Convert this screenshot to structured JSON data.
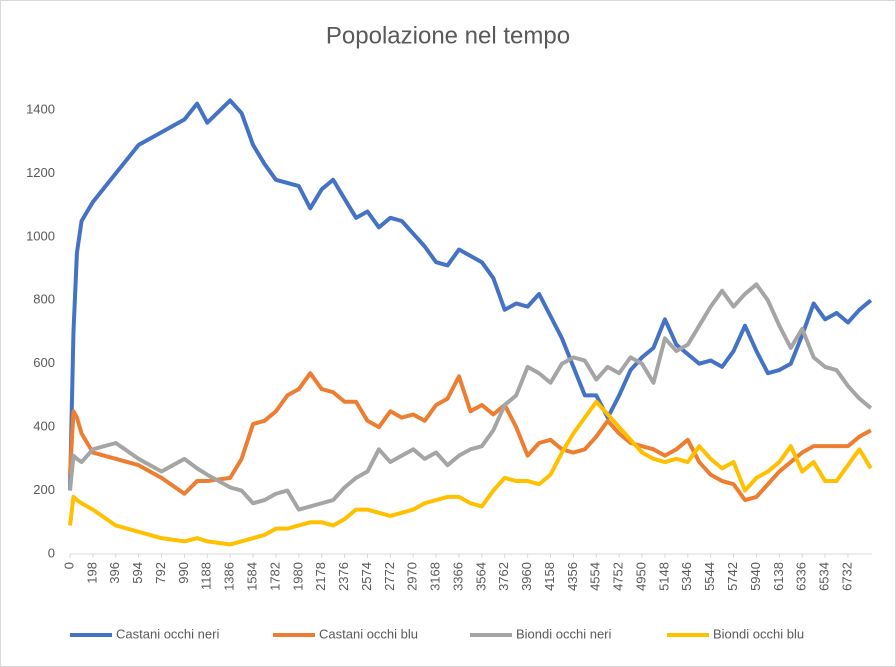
{
  "chart_data": {
    "type": "line",
    "title": "Popolazione nel tempo",
    "x": [
      0,
      30,
      60,
      100,
      198,
      396,
      594,
      792,
      990,
      1100,
      1188,
      1386,
      1485,
      1584,
      1683,
      1782,
      1881,
      1980,
      2079,
      2178,
      2277,
      2376,
      2475,
      2574,
      2673,
      2772,
      2871,
      2970,
      3069,
      3168,
      3267,
      3366,
      3465,
      3564,
      3663,
      3762,
      3861,
      3960,
      4059,
      4158,
      4257,
      4356,
      4455,
      4554,
      4653,
      4752,
      4851,
      4950,
      5049,
      5148,
      5247,
      5346,
      5445,
      5544,
      5643,
      5742,
      5841,
      5940,
      6039,
      6138,
      6237,
      6336,
      6435,
      6534,
      6633,
      6732,
      6831,
      6930
    ],
    "series": [
      {
        "name": "Castani occhi neri",
        "color": "#4472c4",
        "values": [
          200,
          700,
          950,
          1050,
          1110,
          1200,
          1290,
          1330,
          1370,
          1420,
          1360,
          1430,
          1390,
          1290,
          1230,
          1180,
          1170,
          1160,
          1090,
          1150,
          1180,
          1120,
          1060,
          1080,
          1030,
          1060,
          1050,
          1010,
          970,
          920,
          910,
          960,
          940,
          920,
          870,
          770,
          790,
          780,
          820,
          750,
          680,
          590,
          500,
          500,
          430,
          500,
          580,
          620,
          650,
          740,
          660,
          630,
          600,
          610,
          590,
          640,
          720,
          640,
          570,
          580,
          600,
          690,
          790,
          740,
          760,
          730,
          770,
          800
        ]
      },
      {
        "name": "Castani occhi blu",
        "color": "#ed7d31",
        "values": [
          250,
          450,
          430,
          380,
          320,
          300,
          280,
          240,
          190,
          230,
          230,
          240,
          300,
          410,
          420,
          450,
          500,
          520,
          570,
          520,
          510,
          480,
          480,
          420,
          400,
          450,
          430,
          440,
          420,
          470,
          490,
          560,
          450,
          470,
          440,
          470,
          400,
          310,
          350,
          360,
          330,
          320,
          330,
          370,
          420,
          380,
          350,
          340,
          330,
          310,
          330,
          360,
          290,
          250,
          230,
          220,
          170,
          180,
          220,
          260,
          290,
          320,
          340,
          340,
          340,
          340,
          370,
          390
        ]
      },
      {
        "name": "Biondi occhi neri",
        "color": "#a5a5a5",
        "values": [
          200,
          310,
          300,
          290,
          330,
          350,
          300,
          260,
          300,
          270,
          250,
          210,
          200,
          160,
          170,
          190,
          200,
          140,
          150,
          160,
          170,
          210,
          240,
          260,
          330,
          290,
          310,
          330,
          300,
          320,
          280,
          310,
          330,
          340,
          390,
          470,
          500,
          590,
          570,
          540,
          600,
          620,
          610,
          550,
          590,
          570,
          620,
          600,
          540,
          680,
          640,
          660,
          720,
          780,
          830,
          780,
          820,
          850,
          800,
          720,
          650,
          710,
          620,
          590,
          580,
          530,
          490,
          460
        ]
      },
      {
        "name": "Biondi occhi blu",
        "color": "#ffc000",
        "values": [
          90,
          180,
          170,
          160,
          140,
          90,
          70,
          50,
          40,
          50,
          40,
          30,
          40,
          50,
          60,
          80,
          80,
          90,
          100,
          100,
          90,
          110,
          140,
          140,
          130,
          120,
          130,
          140,
          160,
          170,
          180,
          180,
          160,
          150,
          200,
          240,
          230,
          230,
          220,
          250,
          320,
          380,
          430,
          480,
          440,
          400,
          360,
          320,
          300,
          290,
          300,
          290,
          340,
          300,
          270,
          290,
          200,
          240,
          260,
          290,
          340,
          260,
          290,
          230,
          230,
          280,
          330,
          270
        ]
      }
    ],
    "xlim": [
      0,
      6940
    ],
    "xticks": [
      0,
      198,
      396,
      594,
      792,
      990,
      1188,
      1386,
      1584,
      1782,
      1980,
      2178,
      2376,
      2574,
      2772,
      2970,
      3168,
      3366,
      3564,
      3762,
      3960,
      4158,
      4356,
      4554,
      4752,
      4950,
      5148,
      5346,
      5544,
      5742,
      5940,
      6138,
      6336,
      6534,
      6732
    ],
    "ylim": [
      0,
      1400
    ],
    "yticks": [
      0,
      200,
      400,
      600,
      800,
      1000,
      1200,
      1400
    ],
    "legend": "bottom"
  }
}
